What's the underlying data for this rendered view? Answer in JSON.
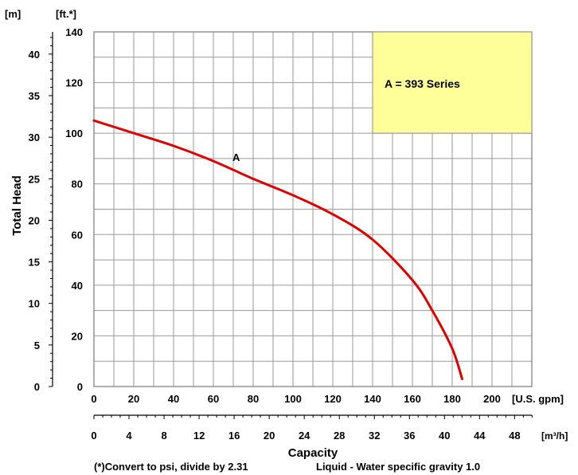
{
  "chart_data": {
    "type": "line",
    "axes": {
      "left_outer_unit": "[m]",
      "left_inner_unit": "[ft.*]",
      "ylabel": "Total Head",
      "xlabel": "Capacity",
      "x_unit_gpm": "[U.S. gpm]",
      "x_unit_m3h": "[m³/h]",
      "ft_ticks": [
        "0",
        "20",
        "40",
        "60",
        "80",
        "100",
        "120",
        "140"
      ],
      "m_ticks": [
        "0",
        "5",
        "10",
        "15",
        "20",
        "25",
        "30",
        "35",
        "40"
      ],
      "gpm_ticks": [
        "0",
        "20",
        "40",
        "60",
        "80",
        "100",
        "120",
        "140",
        "160",
        "180",
        "200"
      ],
      "m3h_ticks": [
        "0",
        "4",
        "8",
        "12",
        "16",
        "20",
        "24",
        "28",
        "32",
        "36",
        "40",
        "44",
        "48"
      ],
      "xlim_gpm": [
        0,
        220
      ],
      "ylim_ft": [
        0,
        140
      ],
      "grid": true
    },
    "legend_box": {
      "text": "A = 393 Series",
      "fill": "#FFFF99"
    },
    "series": [
      {
        "name": "A",
        "color": "#E00000",
        "x_gpm": [
          0,
          20,
          40,
          60,
          80,
          100,
          120,
          140,
          160,
          170,
          180,
          185
        ],
        "y_ft": [
          105,
          100,
          95,
          89,
          82,
          75.5,
          68,
          58,
          42,
          30,
          15,
          3
        ]
      }
    ],
    "footnote": {
      "conversion": "(*)Convert to psi, divide by 2.31",
      "liquid": "Liquid - Water specific gravity 1.0"
    }
  }
}
